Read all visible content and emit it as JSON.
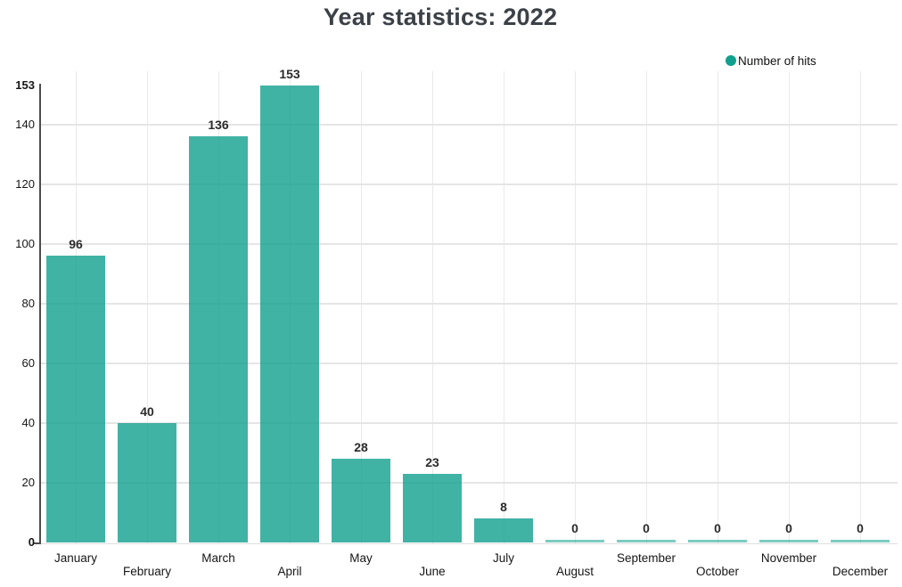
{
  "chart_data": {
    "type": "bar",
    "title": "Year statistics: 2022",
    "categories": [
      "January",
      "February",
      "March",
      "April",
      "May",
      "June",
      "July",
      "August",
      "September",
      "October",
      "November",
      "December"
    ],
    "series": [
      {
        "name": "Number of hits",
        "values": [
          96,
          40,
          136,
          153,
          28,
          23,
          8,
          0,
          0,
          0,
          0,
          0
        ]
      }
    ],
    "xlabel": "",
    "ylabel": "",
    "ylim": [
      0,
      153
    ],
    "y_ticks": [
      0,
      20,
      40,
      60,
      80,
      100,
      120,
      140
    ],
    "y_extreme_labels": [
      0,
      153
    ],
    "grid": true,
    "legend_position": "top-right",
    "colors": {
      "series": "#10a08e",
      "bar_fill": "rgba(16,160,142,0.8)",
      "zero_bar_fill": "rgba(16,160,142,0.55)",
      "grid_h": "#e5e5e5",
      "grid_v": "#eaeaea",
      "baseline": "#dedede",
      "axis_line": "#4d4d4d",
      "title_text": "#3b4147",
      "tick_text": "#161616",
      "value_text": "#2b2b2b"
    }
  }
}
